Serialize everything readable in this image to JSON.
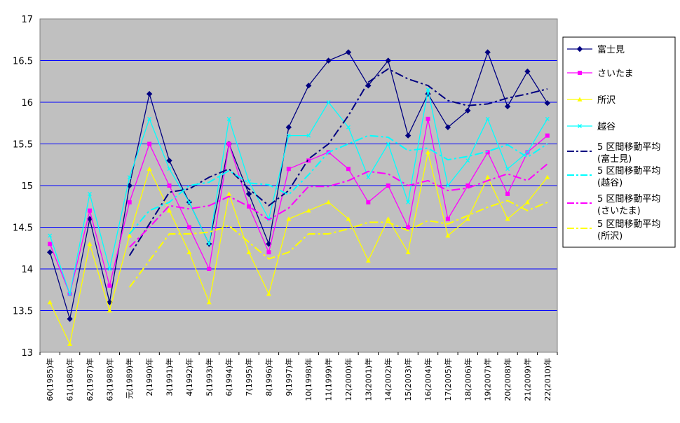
{
  "chart_data": {
    "type": "line",
    "title": "",
    "xlabel": "",
    "ylabel": "",
    "ylim": [
      13,
      17
    ],
    "yticks": [
      "13",
      "13.5",
      "14",
      "14.5",
      "15",
      "15.5",
      "16",
      "16.5",
      "17"
    ],
    "categories": [
      "60(1985)年",
      "61(1986)年",
      "62(1987)年",
      "63(1988)年",
      "元(1989)年",
      "2(1990)年",
      "3(1991)年",
      "4(1992)年",
      "5(1993)年",
      "6(1994)年",
      "7(1995)年",
      "8(1996)年",
      "9(1997)年",
      "10(1998)年",
      "11(1999)年",
      "12(2000)年",
      "13(2001)年",
      "14(2002)年",
      "15(2003)年",
      "16(2004)年",
      "17(2005)年",
      "18(2006)年",
      "19(2007)年",
      "20(2008)年",
      "21(2009)年",
      "22(2010)年"
    ],
    "grid": true,
    "plot_background": "#c0c0c0",
    "gridline_color": "#0000ff",
    "legend_position": "right",
    "series": [
      {
        "name": "富士見",
        "color": "#000080",
        "style": "solid",
        "marker": "diamond",
        "values": [
          14.2,
          13.4,
          14.6,
          13.6,
          15.0,
          16.1,
          15.3,
          14.8,
          14.3,
          15.5,
          14.9,
          14.3,
          15.7,
          16.2,
          16.5,
          16.6,
          16.2,
          16.5,
          15.6,
          16.1,
          15.7,
          15.9,
          16.6,
          15.95,
          16.37,
          15.99
        ]
      },
      {
        "name": "さいたま",
        "color": "#ff00ff",
        "style": "solid",
        "marker": "square",
        "values": [
          14.3,
          13.7,
          14.7,
          13.8,
          14.8,
          15.5,
          15.0,
          14.5,
          14.0,
          15.5,
          14.75,
          14.2,
          15.2,
          15.3,
          15.4,
          15.2,
          14.8,
          15.0,
          14.5,
          15.8,
          14.6,
          15.0,
          15.4,
          14.9,
          15.4,
          15.6
        ]
      },
      {
        "name": "所沢",
        "color": "#ffff00",
        "style": "solid",
        "marker": "triangle",
        "values": [
          13.6,
          13.1,
          14.3,
          13.5,
          14.4,
          15.2,
          14.7,
          14.2,
          13.6,
          14.9,
          14.2,
          13.7,
          14.6,
          14.7,
          14.8,
          14.6,
          14.1,
          14.6,
          14.2,
          15.4,
          14.4,
          14.6,
          15.1,
          14.6,
          14.8,
          15.1
        ]
      },
      {
        "name": "越谷",
        "color": "#00ffff",
        "style": "solid",
        "marker": "x",
        "values": [
          14.4,
          13.7,
          14.9,
          14.0,
          15.1,
          15.8,
          15.2,
          14.8,
          14.3,
          15.8,
          15.05,
          14.6,
          15.6,
          15.6,
          16.0,
          15.7,
          15.1,
          15.5,
          14.8,
          16.15,
          15.0,
          15.3,
          15.8,
          15.2,
          15.4,
          15.8
        ]
      },
      {
        "name": "5 区間移動平均 (富士見)",
        "color": "#000080",
        "style": "dashdot",
        "marker": "none",
        "values": [
          null,
          null,
          null,
          null,
          14.16,
          14.54,
          14.92,
          14.96,
          15.1,
          15.2,
          14.96,
          14.76,
          14.94,
          15.32,
          15.5,
          15.84,
          16.24,
          16.4,
          16.28,
          16.2,
          16.02,
          15.96,
          15.98,
          16.05,
          16.1,
          16.16
        ]
      },
      {
        "name": "5 区間移動平均 (越谷)",
        "color": "#00ffff",
        "style": "dashdot",
        "marker": "none",
        "values": [
          null,
          null,
          null,
          null,
          14.42,
          14.7,
          14.8,
          15.0,
          15.04,
          15.18,
          15.03,
          15.01,
          14.89,
          15.13,
          15.4,
          15.5,
          15.6,
          15.58,
          15.42,
          15.45,
          15.31,
          15.35,
          15.41,
          15.49,
          15.34,
          15.5
        ]
      },
      {
        "name": "5 区間移動平均 (さいたま)",
        "color": "#ff00ff",
        "style": "dashdot",
        "marker": "none",
        "values": [
          null,
          null,
          null,
          null,
          14.26,
          14.5,
          14.76,
          14.72,
          14.76,
          14.87,
          14.75,
          14.59,
          14.73,
          14.99,
          14.99,
          15.06,
          15.17,
          15.14,
          15.0,
          15.06,
          14.94,
          14.97,
          15.06,
          15.14,
          15.06,
          15.26
        ]
      },
      {
        "name": "5 区間移動平均 (所沢)",
        "color": "#ffff00",
        "style": "dashdot",
        "marker": "none",
        "values": [
          null,
          null,
          null,
          null,
          13.78,
          14.1,
          14.42,
          14.42,
          14.44,
          14.52,
          14.32,
          14.12,
          14.2,
          14.42,
          14.42,
          14.48,
          14.56,
          14.56,
          14.46,
          14.58,
          14.54,
          14.64,
          14.74,
          14.82,
          14.7,
          14.8
        ]
      }
    ]
  }
}
